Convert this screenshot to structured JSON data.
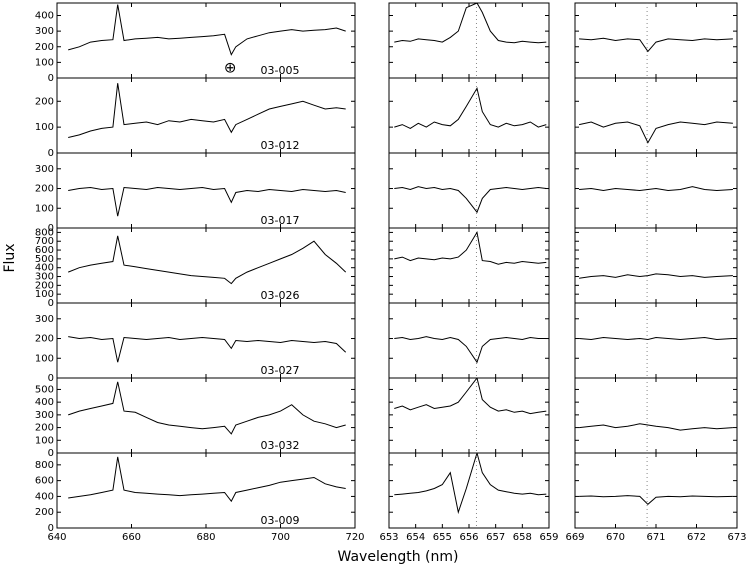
{
  "chart_data": {
    "type": "line",
    "xlabel": "Wavelength (nm)",
    "ylabel": "Flux",
    "color": "#000000",
    "columns": [
      {
        "xlim": [
          640,
          720
        ],
        "xticks": [
          640,
          660,
          680,
          700,
          720
        ],
        "x": [
          643,
          646,
          649,
          652,
          655,
          656.3,
          658,
          661,
          664,
          667,
          670,
          673,
          676,
          679,
          682,
          685,
          686.8,
          688,
          691,
          694,
          697,
          700,
          703,
          706,
          709,
          712,
          715,
          717.5
        ]
      },
      {
        "xlim": [
          653,
          659
        ],
        "xticks": [
          653,
          654,
          655,
          656,
          657,
          658,
          659
        ],
        "reference_line": 656.28,
        "x": [
          653.2,
          653.5,
          653.8,
          654.1,
          654.4,
          654.7,
          655.0,
          655.3,
          655.6,
          655.9,
          656.3,
          656.5,
          656.8,
          657.1,
          657.4,
          657.7,
          658.0,
          658.3,
          658.6,
          658.9
        ]
      },
      {
        "xlim": [
          669,
          673
        ],
        "xticks": [
          669,
          670,
          671,
          672,
          673
        ],
        "reference_line": 670.78,
        "x": [
          669.1,
          669.4,
          669.7,
          670.0,
          670.3,
          670.6,
          670.8,
          671.0,
          671.3,
          671.6,
          671.9,
          672.2,
          672.5,
          672.9
        ]
      }
    ],
    "rows": [
      {
        "label": "03-005",
        "annotation": "⊕",
        "ylim": [
          0,
          480
        ],
        "yticks": [
          0,
          100,
          200,
          300,
          400
        ],
        "series": [
          {
            "values": [
              180,
              200,
              230,
              240,
              245,
              470,
              240,
              250,
              255,
              260,
              250,
              255,
              260,
              265,
              270,
              280,
              150,
              200,
              250,
              270,
              290,
              300,
              310,
              300,
              305,
              310,
              320,
              300
            ]
          },
          {
            "values": [
              230,
              240,
              235,
              250,
              245,
              240,
              230,
              260,
              300,
              450,
              480,
              420,
              300,
              240,
              230,
              225,
              235,
              230,
              225,
              230
            ]
          },
          {
            "values": [
              250,
              245,
              255,
              240,
              250,
              245,
              170,
              230,
              250,
              245,
              240,
              250,
              245,
              250
            ]
          }
        ]
      },
      {
        "label": "03-012",
        "ylim": [
          0,
          290
        ],
        "yticks": [
          0,
          100,
          200
        ],
        "series": [
          {
            "values": [
              60,
              70,
              85,
              95,
              100,
              270,
              110,
              115,
              120,
              110,
              125,
              120,
              130,
              125,
              120,
              130,
              80,
              110,
              130,
              150,
              170,
              180,
              190,
              200,
              185,
              170,
              175,
              170
            ]
          },
          {
            "values": [
              100,
              110,
              95,
              115,
              100,
              120,
              110,
              105,
              130,
              180,
              250,
              160,
              110,
              100,
              115,
              105,
              110,
              120,
              100,
              110
            ]
          },
          {
            "values": [
              110,
              120,
              100,
              115,
              120,
              105,
              40,
              95,
              110,
              120,
              115,
              110,
              120,
              115
            ]
          }
        ]
      },
      {
        "label": "03-017",
        "ylim": [
          0,
          380
        ],
        "yticks": [
          0,
          100,
          200,
          300
        ],
        "series": [
          {
            "values": [
              190,
              200,
              205,
              195,
              200,
              60,
              205,
              200,
              195,
              205,
              200,
              195,
              200,
              205,
              195,
              200,
              130,
              180,
              190,
              185,
              195,
              190,
              185,
              195,
              190,
              185,
              190,
              180
            ]
          },
          {
            "values": [
              200,
              205,
              195,
              210,
              200,
              205,
              195,
              200,
              190,
              150,
              80,
              150,
              195,
              200,
              205,
              200,
              195,
              200,
              205,
              200
            ]
          },
          {
            "values": [
              195,
              200,
              190,
              200,
              195,
              190,
              195,
              200,
              190,
              195,
              210,
              195,
              190,
              195
            ]
          }
        ]
      },
      {
        "label": "03-026",
        "ylim": [
          0,
          850
        ],
        "yticks": [
          0,
          100,
          200,
          300,
          400,
          500,
          600,
          700,
          800
        ],
        "series": [
          {
            "values": [
              350,
              400,
              430,
              450,
              470,
              760,
              430,
              410,
              390,
              370,
              350,
              330,
              310,
              300,
              290,
              280,
              220,
              280,
              350,
              400,
              450,
              500,
              550,
              620,
              700,
              550,
              450,
              350
            ]
          },
          {
            "values": [
              500,
              520,
              480,
              510,
              500,
              490,
              510,
              500,
              520,
              600,
              800,
              480,
              470,
              440,
              460,
              450,
              470,
              460,
              450,
              460
            ]
          },
          {
            "values": [
              280,
              300,
              310,
              290,
              320,
              300,
              310,
              330,
              320,
              300,
              310,
              290,
              300,
              310
            ]
          }
        ]
      },
      {
        "label": "03-027",
        "ylim": [
          0,
          380
        ],
        "yticks": [
          0,
          100,
          200,
          300
        ],
        "series": [
          {
            "values": [
              210,
              200,
              205,
              195,
              200,
              80,
              205,
              200,
              195,
              200,
              205,
              195,
              200,
              205,
              200,
              195,
              150,
              190,
              185,
              190,
              185,
              180,
              190,
              185,
              180,
              185,
              175,
              130
            ]
          },
          {
            "values": [
              200,
              205,
              195,
              200,
              210,
              200,
              195,
              205,
              195,
              160,
              80,
              160,
              195,
              200,
              205,
              200,
              195,
              205,
              200,
              200
            ]
          },
          {
            "values": [
              200,
              195,
              205,
              200,
              195,
              200,
              195,
              205,
              200,
              195,
              200,
              205,
              195,
              200
            ]
          }
        ]
      },
      {
        "label": "03-032",
        "ylim": [
          0,
          590
        ],
        "yticks": [
          0,
          100,
          200,
          300,
          400,
          500
        ],
        "series": [
          {
            "values": [
              300,
              330,
              350,
              370,
              390,
              560,
              330,
              320,
              280,
              240,
              220,
              210,
              200,
              190,
              200,
              210,
              150,
              220,
              250,
              280,
              300,
              330,
              380,
              300,
              250,
              230,
              200,
              220
            ]
          },
          {
            "values": [
              350,
              370,
              340,
              360,
              380,
              350,
              360,
              370,
              400,
              480,
              590,
              420,
              360,
              330,
              340,
              320,
              330,
              310,
              320,
              330
            ]
          },
          {
            "values": [
              200,
              210,
              220,
              200,
              210,
              230,
              220,
              210,
              200,
              180,
              190,
              200,
              190,
              200
            ]
          }
        ]
      },
      {
        "label": "03-009",
        "ylim": [
          0,
          950
        ],
        "yticks": [
          0,
          200,
          400,
          600,
          800
        ],
        "series": [
          {
            "values": [
              380,
              400,
              420,
              450,
              480,
              900,
              480,
              450,
              440,
              430,
              420,
              410,
              420,
              430,
              440,
              450,
              340,
              450,
              480,
              510,
              540,
              580,
              600,
              620,
              640,
              560,
              520,
              500
            ]
          },
          {
            "values": [
              420,
              430,
              440,
              450,
              470,
              500,
              550,
              700,
              200,
              500,
              950,
              700,
              550,
              480,
              460,
              440,
              430,
              440,
              420,
              430
            ]
          },
          {
            "values": [
              400,
              405,
              395,
              400,
              410,
              400,
              300,
              390,
              400,
              395,
              405,
              400,
              395,
              400
            ]
          }
        ]
      }
    ]
  }
}
